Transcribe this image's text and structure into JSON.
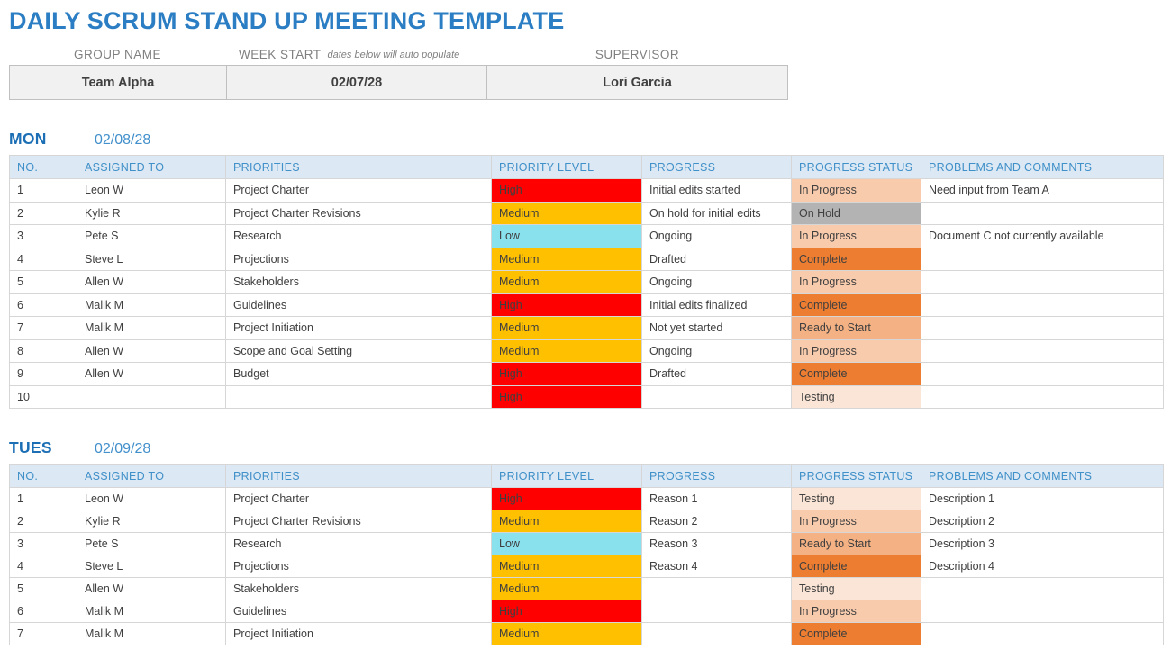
{
  "title": "DAILY SCRUM STAND UP MEETING TEMPLATE",
  "info": {
    "fields": [
      {
        "label": "GROUP NAME",
        "note": "",
        "value": "Team Alpha"
      },
      {
        "label": "WEEK START",
        "note": "dates below will auto populate",
        "value": "02/07/28"
      },
      {
        "label": "SUPERVISOR",
        "note": "",
        "value": "Lori Garcia"
      }
    ]
  },
  "columns": [
    "NO.",
    "ASSIGNED TO",
    "PRIORITIES",
    "PRIORITY LEVEL",
    "PROGRESS",
    "PROGRESS STATUS",
    "PROBLEMS AND COMMENTS"
  ],
  "colors": {
    "title_blue": "#2B7EC3",
    "header_bg": "#DCE8F3",
    "header_text": "#4090C9",
    "priority": {
      "High": "#FE0000",
      "Medium": "#FFC000",
      "Low": "#89E1EE"
    },
    "status": {
      "In Progress": "#F8CBAD",
      "On Hold": "#B3B3B3",
      "Complete": "#ED7D31",
      "Ready to Start": "#F4B183",
      "Testing": "#FBE5D6"
    }
  },
  "days": [
    {
      "name": "MON",
      "date": "02/08/28",
      "rows": [
        {
          "no": "1",
          "assigned": "Leon W",
          "task": "Project Charter",
          "level": "High",
          "progress": "Initial edits started",
          "status": "In Progress",
          "comments": "Need input from Team A"
        },
        {
          "no": "2",
          "assigned": "Kylie R",
          "task": "Project Charter Revisions",
          "level": "Medium",
          "progress": "On hold for initial edits",
          "status": "On Hold",
          "comments": ""
        },
        {
          "no": "3",
          "assigned": "Pete S",
          "task": "Research",
          "level": "Low",
          "progress": "Ongoing",
          "status": "In Progress",
          "comments": "Document C not currently available"
        },
        {
          "no": "4",
          "assigned": "Steve L",
          "task": "Projections",
          "level": "Medium",
          "progress": "Drafted",
          "status": "Complete",
          "comments": ""
        },
        {
          "no": "5",
          "assigned": "Allen W",
          "task": "Stakeholders",
          "level": "Medium",
          "progress": "Ongoing",
          "status": "In Progress",
          "comments": ""
        },
        {
          "no": "6",
          "assigned": "Malik M",
          "task": "Guidelines",
          "level": "High",
          "progress": "Initial edits finalized",
          "status": "Complete",
          "comments": ""
        },
        {
          "no": "7",
          "assigned": "Malik M",
          "task": "Project Initiation",
          "level": "Medium",
          "progress": "Not yet started",
          "status": "Ready to Start",
          "comments": ""
        },
        {
          "no": "8",
          "assigned": "Allen W",
          "task": "Scope and Goal Setting",
          "level": "Medium",
          "progress": "Ongoing",
          "status": "In Progress",
          "comments": ""
        },
        {
          "no": "9",
          "assigned": "Allen W",
          "task": "Budget",
          "level": "High",
          "progress": "Drafted",
          "status": "Complete",
          "comments": ""
        },
        {
          "no": "10",
          "assigned": "",
          "task": "",
          "level": "High",
          "progress": "",
          "status": "Testing",
          "comments": ""
        }
      ]
    },
    {
      "name": "TUES",
      "date": "02/09/28",
      "rows": [
        {
          "no": "1",
          "assigned": "Leon W",
          "task": "Project Charter",
          "level": "High",
          "progress": "Reason 1",
          "status": "Testing",
          "comments": "Description 1"
        },
        {
          "no": "2",
          "assigned": "Kylie R",
          "task": "Project Charter Revisions",
          "level": "Medium",
          "progress": "Reason 2",
          "status": "In Progress",
          "comments": "Description 2"
        },
        {
          "no": "3",
          "assigned": "Pete S",
          "task": "Research",
          "level": "Low",
          "progress": "Reason 3",
          "status": "Ready to Start",
          "comments": "Description 3"
        },
        {
          "no": "4",
          "assigned": "Steve L",
          "task": "Projections",
          "level": "Medium",
          "progress": "Reason 4",
          "status": "Complete",
          "comments": "Description 4"
        },
        {
          "no": "5",
          "assigned": "Allen W",
          "task": "Stakeholders",
          "level": "Medium",
          "progress": "",
          "status": "Testing",
          "comments": ""
        },
        {
          "no": "6",
          "assigned": "Malik M",
          "task": "Guidelines",
          "level": "High",
          "progress": "",
          "status": "In Progress",
          "comments": ""
        },
        {
          "no": "7",
          "assigned": "Malik M",
          "task": "Project Initiation",
          "level": "Medium",
          "progress": "",
          "status": "Complete",
          "comments": ""
        }
      ]
    }
  ]
}
